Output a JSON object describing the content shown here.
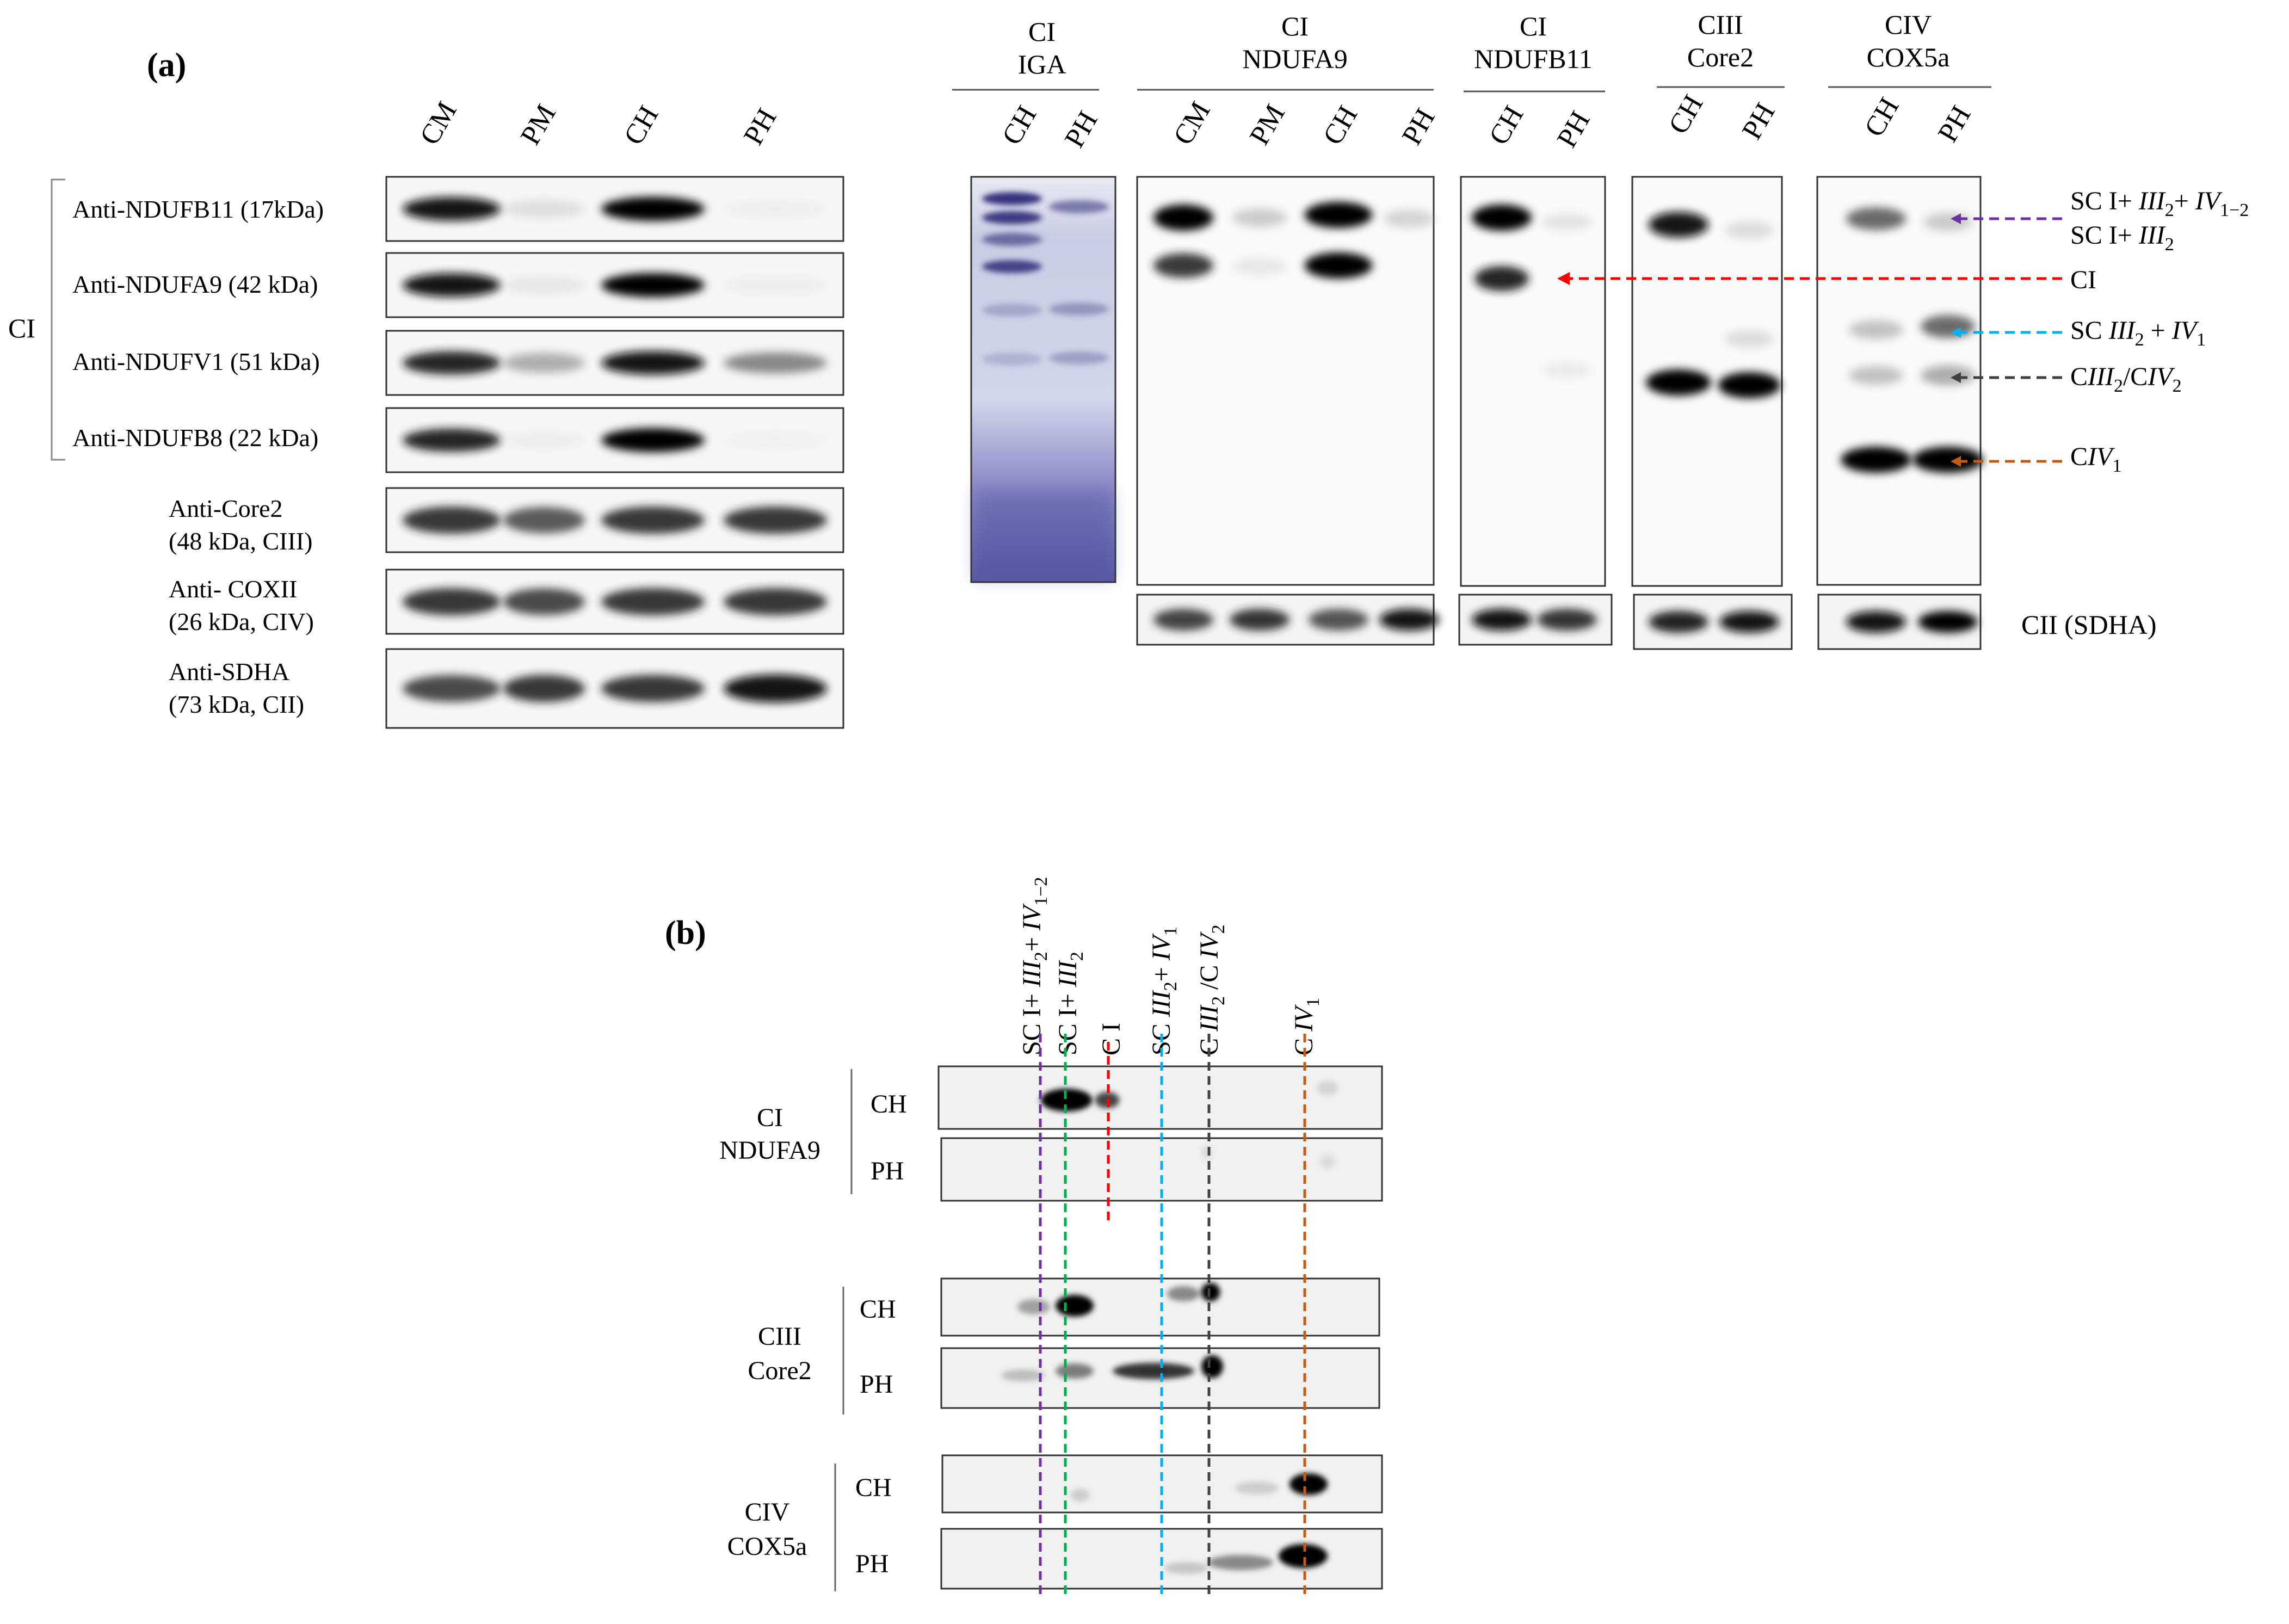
{
  "panel_a": {
    "label": "(a)",
    "group_label": "CI",
    "lanes": [
      "CM",
      "PM",
      "CH",
      "PH"
    ],
    "blots": [
      {
        "id": "ndufb11",
        "label": [
          "Anti-NDUFB11 (17kDa)"
        ],
        "intensity": [
          0.95,
          0.18,
          1.0,
          0.05
        ]
      },
      {
        "id": "ndufa9",
        "label": [
          "Anti-NDUFA9 (42 kDa)"
        ],
        "intensity": [
          0.95,
          0.12,
          1.0,
          0.06
        ]
      },
      {
        "id": "ndufv1",
        "label": [
          "Anti-NDUFV1 (51 kDa)"
        ],
        "intensity": [
          0.9,
          0.45,
          0.95,
          0.6
        ]
      },
      {
        "id": "ndufb8",
        "label": [
          "Anti-NDUFB8 (22 kDa)"
        ],
        "intensity": [
          0.9,
          0.06,
          1.0,
          0.03
        ]
      },
      {
        "id": "core2",
        "label": [
          "Anti-Core2",
          "(48 kDa, CIII)"
        ],
        "intensity": [
          0.85,
          0.75,
          0.85,
          0.85
        ]
      },
      {
        "id": "coxii",
        "label": [
          "Anti- COXII",
          "(26 kDa, CIV)"
        ],
        "intensity": [
          0.85,
          0.8,
          0.85,
          0.85
        ]
      },
      {
        "id": "sdha",
        "label": [
          "Anti-SDHA",
          "(73 kDa, CII)"
        ],
        "intensity": [
          0.8,
          0.85,
          0.85,
          0.95
        ]
      }
    ],
    "gels": [
      {
        "id": "iga",
        "header": [
          "CI",
          "IGA"
        ],
        "lanes": [
          "CH",
          "PH"
        ],
        "stained": true
      },
      {
        "id": "ndufa9",
        "header": [
          "CI",
          "NDUFA9"
        ],
        "lanes": [
          "CM",
          "PM",
          "CH",
          "PH"
        ]
      },
      {
        "id": "ndufb11",
        "header": [
          "CI",
          "NDUFB11"
        ],
        "lanes": [
          "CH",
          "PH"
        ]
      },
      {
        "id": "core2",
        "header": [
          "CIII",
          "Core2"
        ],
        "lanes": [
          "CH",
          "PH"
        ]
      },
      {
        "id": "cox5a",
        "header": [
          "CIV",
          "COX5a"
        ],
        "lanes": [
          "CH",
          "PH"
        ]
      }
    ],
    "loading_control_label": "CII (SDHA)",
    "complex_markers": [
      {
        "id": "sc-iv",
        "lines": [
          [
            "SC I+ ",
            {
              "i": "III"
            },
            {
              "sub": "2"
            },
            "+ ",
            {
              "i": "IV"
            },
            {
              "sub": "1−2"
            }
          ],
          [
            "SC I+ ",
            {
              "i": "III"
            },
            {
              "sub": "2"
            }
          ]
        ],
        "color": "#7030a0"
      },
      {
        "id": "ci",
        "lines": [
          [
            "CI"
          ]
        ],
        "color": "#ff0000"
      },
      {
        "id": "sc-iii-iv",
        "lines": [
          [
            "SC ",
            {
              "i": "III"
            },
            {
              "sub": "2"
            },
            " + ",
            {
              "i": "IV"
            },
            {
              "sub": "1"
            }
          ]
        ],
        "color": "#00b0f0"
      },
      {
        "id": "ciii-civ",
        "lines": [
          [
            "C",
            {
              "i": "III"
            },
            {
              "sub": "2"
            },
            "/C",
            {
              "i": "IV"
            },
            {
              "sub": "2"
            }
          ]
        ],
        "color": "#404040"
      },
      {
        "id": "civ1",
        "lines": [
          [
            "C",
            {
              "i": "IV"
            },
            {
              "sub": "1"
            }
          ]
        ],
        "color": "#c55a11"
      }
    ]
  },
  "panel_b": {
    "label": "(b)",
    "column_labels": [
      {
        "id": "sc-i-iii-iv",
        "runs": [
          "SC I+ ",
          {
            "i": "III"
          },
          {
            "sub": "2"
          },
          "+ ",
          {
            "i": "IV"
          },
          {
            "sub": "1−2"
          }
        ],
        "color": "#7030a0"
      },
      {
        "id": "sc-i-iii",
        "runs": [
          "SC I+ ",
          {
            "i": "III"
          },
          {
            "sub": "2"
          }
        ],
        "color": "#00b050"
      },
      {
        "id": "c-i",
        "runs": [
          "C I"
        ],
        "color": "#ff0000"
      },
      {
        "id": "sc-iii-iv1",
        "runs": [
          "SC  ",
          {
            "i": "III"
          },
          {
            "sub": "2"
          },
          "+ ",
          {
            "i": "IV"
          },
          {
            "sub": "1"
          }
        ],
        "color": "#00b0f0"
      },
      {
        "id": "ciii2-civ2",
        "runs": [
          "C ",
          {
            "i": "III"
          },
          {
            "sub": "2"
          },
          " /C ",
          {
            "i": "IV"
          },
          {
            "sub": "2"
          }
        ],
        "color": "#404040"
      },
      {
        "id": "civ1",
        "runs": [
          "C ",
          {
            "i": "IV"
          },
          {
            "sub": "1"
          }
        ],
        "color": "#c55a11"
      }
    ],
    "groups": [
      {
        "id": "ci",
        "label": [
          "CI",
          "NDUFA9"
        ],
        "rows": [
          "CH",
          "PH"
        ]
      },
      {
        "id": "ciii",
        "label": [
          "CIII",
          "Core2"
        ],
        "rows": [
          "CH",
          "PH"
        ]
      },
      {
        "id": "civ",
        "label": [
          "CIV",
          "COX5a"
        ],
        "rows": [
          "CH",
          "PH"
        ]
      }
    ]
  }
}
